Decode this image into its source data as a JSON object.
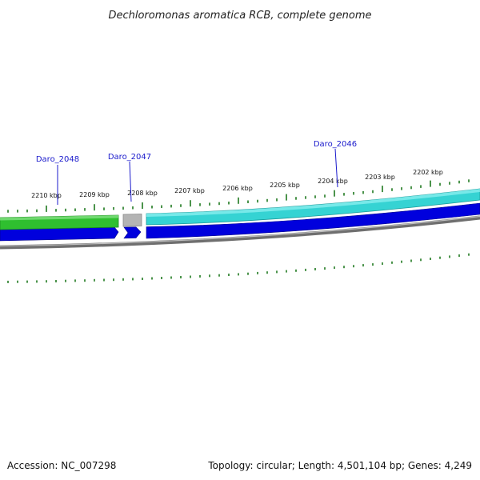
{
  "title": "Dechloromonas aromatica RCB, complete genome",
  "accession": "Accession: NC_007298",
  "summary": "Topology: circular; Length: 4,501,104 bp; Genes: 4,249",
  "ticks": [
    "2210 kbp",
    "2209 kbp",
    "2208 kbp",
    "2207 kbp",
    "2206 kbp",
    "2205 kbp",
    "2204 kbp",
    "2203 kbp",
    "2202 kbp"
  ],
  "genes": [
    {
      "label": "Daro_2048",
      "strand": "+",
      "color": "#2fbf2f",
      "outline": "#1c8a1c"
    },
    {
      "label": "Daro_2047",
      "strand": "+",
      "color": "#b4b4b4",
      "outline": "#8a8a8a"
    },
    {
      "label": "Daro_2046",
      "strand": "+",
      "color": "#35d3d3",
      "outline": "#1a9a9a"
    }
  ],
  "colors": {
    "tick": "#1f7a1f",
    "forward_cds": "#0000dd",
    "backbone": "#7f7f7f",
    "label_line": "#1a1acc"
  }
}
